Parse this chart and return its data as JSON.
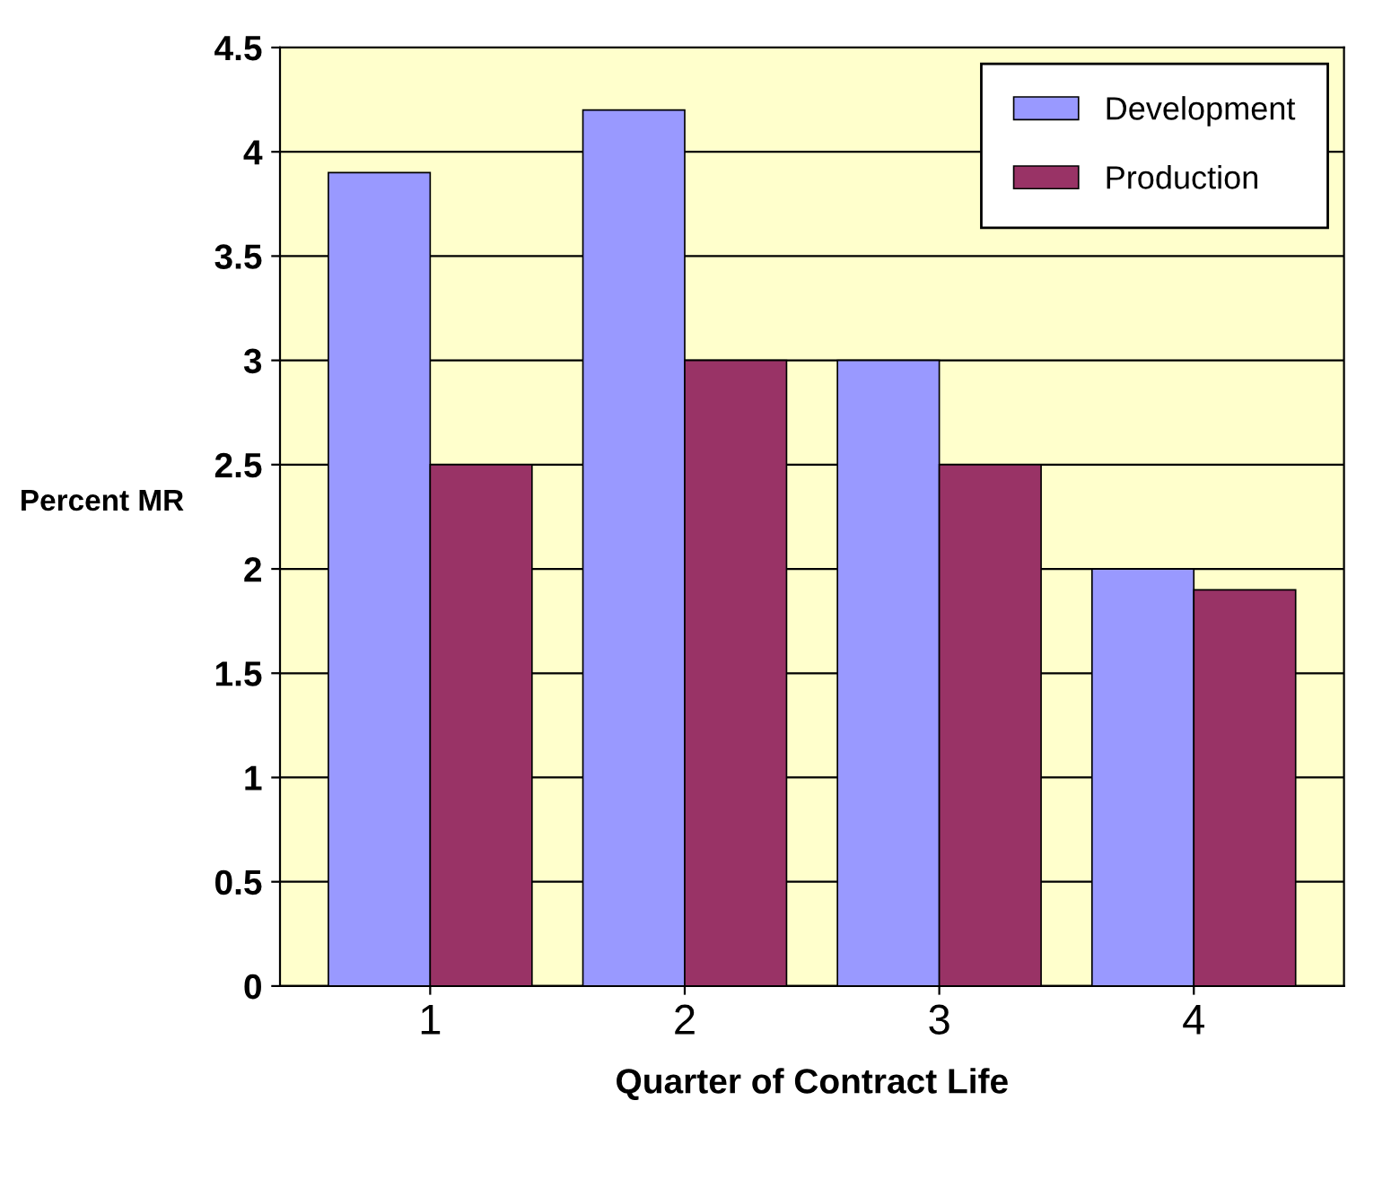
{
  "chart_data": {
    "type": "bar",
    "xlabel": "Quarter of Contract Life",
    "ylabel": "Percent MR",
    "categories": [
      "1",
      "2",
      "3",
      "4"
    ],
    "series": [
      {
        "name": "Development",
        "color": "#9999ff",
        "values": [
          3.9,
          4.2,
          3.0,
          2.0
        ]
      },
      {
        "name": "Production",
        "color": "#993366",
        "values": [
          2.5,
          3.0,
          2.5,
          1.9
        ]
      }
    ],
    "ylim": [
      0,
      4.5
    ],
    "yticks": [
      0,
      0.5,
      1,
      1.5,
      2,
      2.5,
      3,
      3.5,
      4,
      4.5
    ],
    "grid": "y",
    "legend": "top right"
  }
}
